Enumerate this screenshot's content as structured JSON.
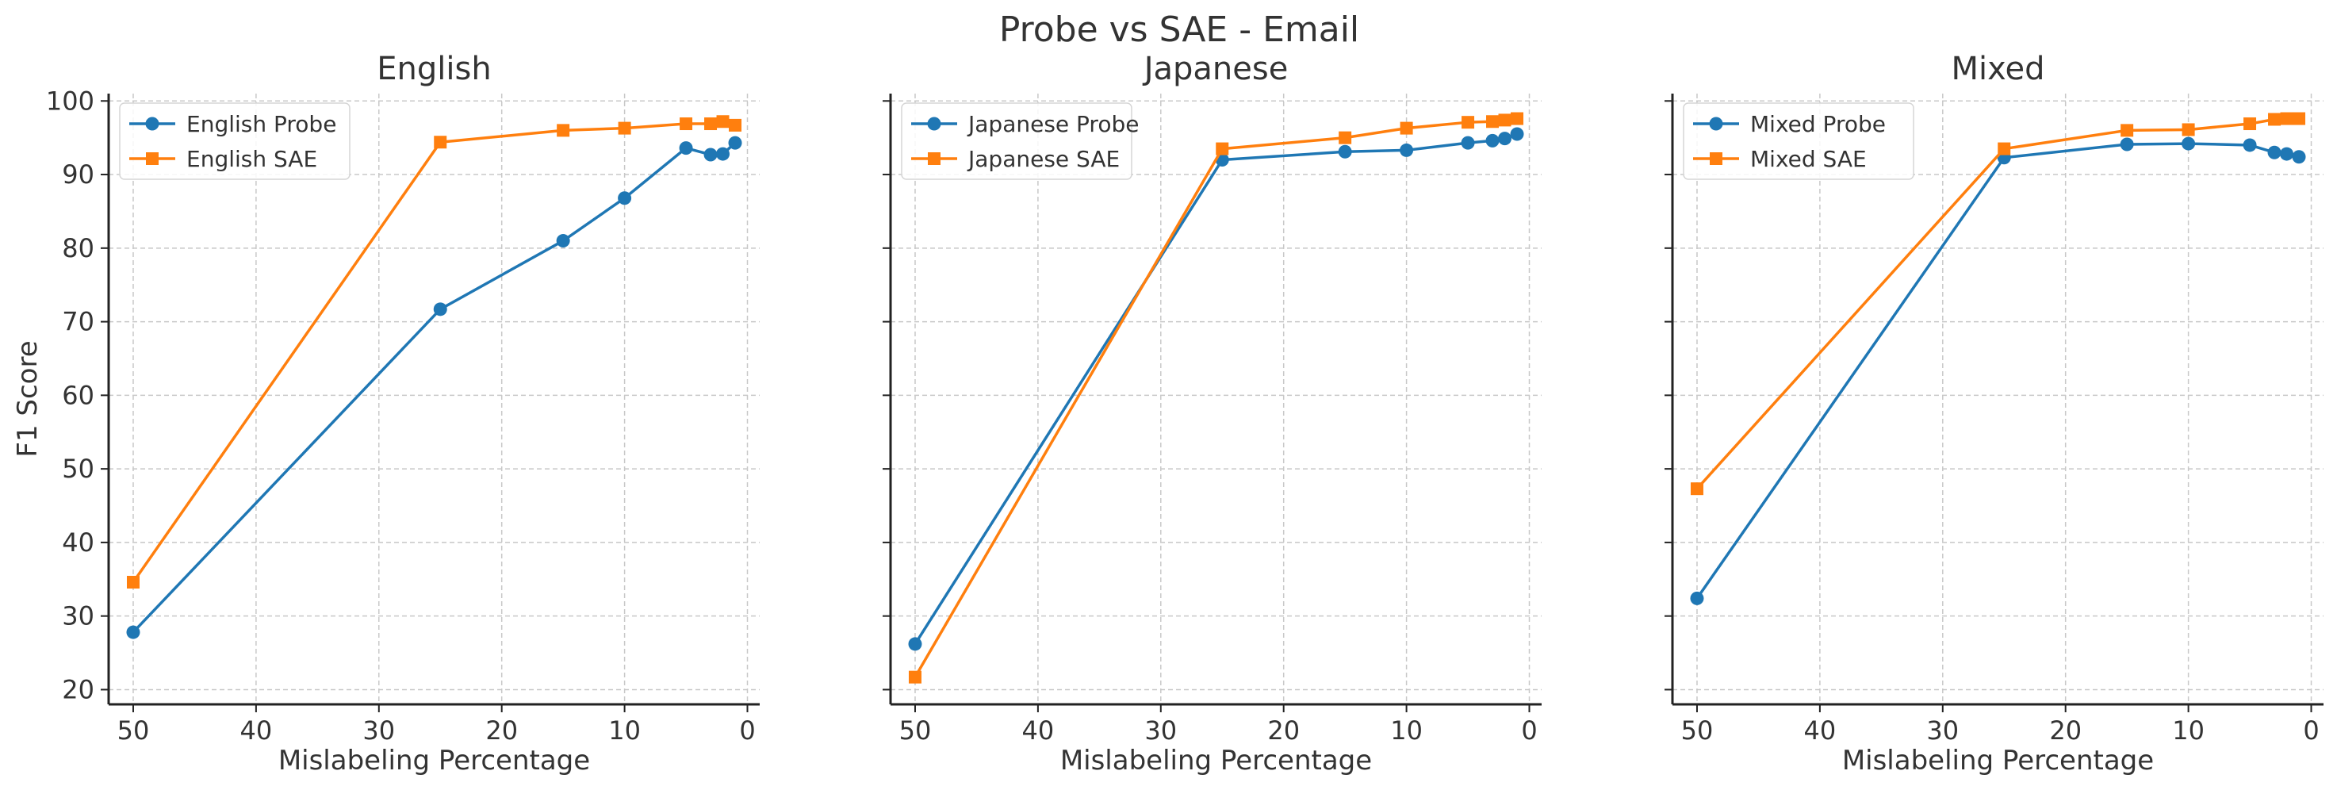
{
  "figure": {
    "title": "Probe vs SAE - Email",
    "ylabel": "F1 Score",
    "xlabel": "Mislabeling Percentage",
    "colors": {
      "probe": "#1f77b4",
      "sae": "#ff7f0e"
    }
  },
  "chart_data": [
    {
      "type": "line",
      "title": "English",
      "xlabel": "Mislabeling Percentage",
      "ylabel": "F1 Score",
      "x": [
        50,
        25,
        15,
        10,
        5,
        3,
        2,
        1
      ],
      "xlim": [
        52,
        -1
      ],
      "ylim": [
        18,
        101
      ],
      "xticks": [
        50,
        40,
        30,
        20,
        10,
        0
      ],
      "yticks": [
        20,
        30,
        40,
        50,
        60,
        70,
        80,
        90,
        100
      ],
      "grid": true,
      "legend": "upper-left",
      "series": [
        {
          "name": "English Probe",
          "marker": "circle",
          "color": "#1f77b4",
          "values": [
            27.8,
            71.7,
            81.0,
            86.8,
            93.6,
            92.7,
            92.8,
            94.3
          ]
        },
        {
          "name": "English SAE",
          "marker": "square",
          "color": "#ff7f0e",
          "values": [
            34.6,
            94.4,
            96.0,
            96.3,
            96.9,
            96.9,
            97.2,
            96.7
          ]
        }
      ]
    },
    {
      "type": "line",
      "title": "Japanese",
      "xlabel": "Mislabeling Percentage",
      "x": [
        50,
        25,
        15,
        10,
        5,
        3,
        2,
        1
      ],
      "xlim": [
        52,
        -1
      ],
      "ylim": [
        18,
        101
      ],
      "xticks": [
        50,
        40,
        30,
        20,
        10,
        0
      ],
      "yticks": [
        20,
        30,
        40,
        50,
        60,
        70,
        80,
        90,
        100
      ],
      "grid": true,
      "legend": "upper-left",
      "series": [
        {
          "name": "Japanese Probe",
          "marker": "circle",
          "color": "#1f77b4",
          "values": [
            26.2,
            92.0,
            93.1,
            93.3,
            94.3,
            94.6,
            94.9,
            95.5
          ]
        },
        {
          "name": "Japanese SAE",
          "marker": "square",
          "color": "#ff7f0e",
          "values": [
            21.7,
            93.5,
            95.0,
            96.3,
            97.1,
            97.2,
            97.4,
            97.6
          ]
        }
      ]
    },
    {
      "type": "line",
      "title": "Mixed",
      "xlabel": "Mislabeling Percentage",
      "x": [
        50,
        25,
        15,
        10,
        5,
        3,
        2,
        1
      ],
      "xlim": [
        52,
        -1
      ],
      "ylim": [
        18,
        101
      ],
      "xticks": [
        50,
        40,
        30,
        20,
        10,
        0
      ],
      "yticks": [
        20,
        30,
        40,
        50,
        60,
        70,
        80,
        90,
        100
      ],
      "grid": true,
      "legend": "upper-left",
      "series": [
        {
          "name": "Mixed Probe",
          "marker": "circle",
          "color": "#1f77b4",
          "values": [
            32.4,
            92.3,
            94.1,
            94.2,
            94.0,
            93.0,
            92.8,
            92.4
          ]
        },
        {
          "name": "Mixed SAE",
          "marker": "square",
          "color": "#ff7f0e",
          "values": [
            47.3,
            93.5,
            96.0,
            96.1,
            96.9,
            97.5,
            97.6,
            97.6
          ]
        }
      ]
    }
  ]
}
